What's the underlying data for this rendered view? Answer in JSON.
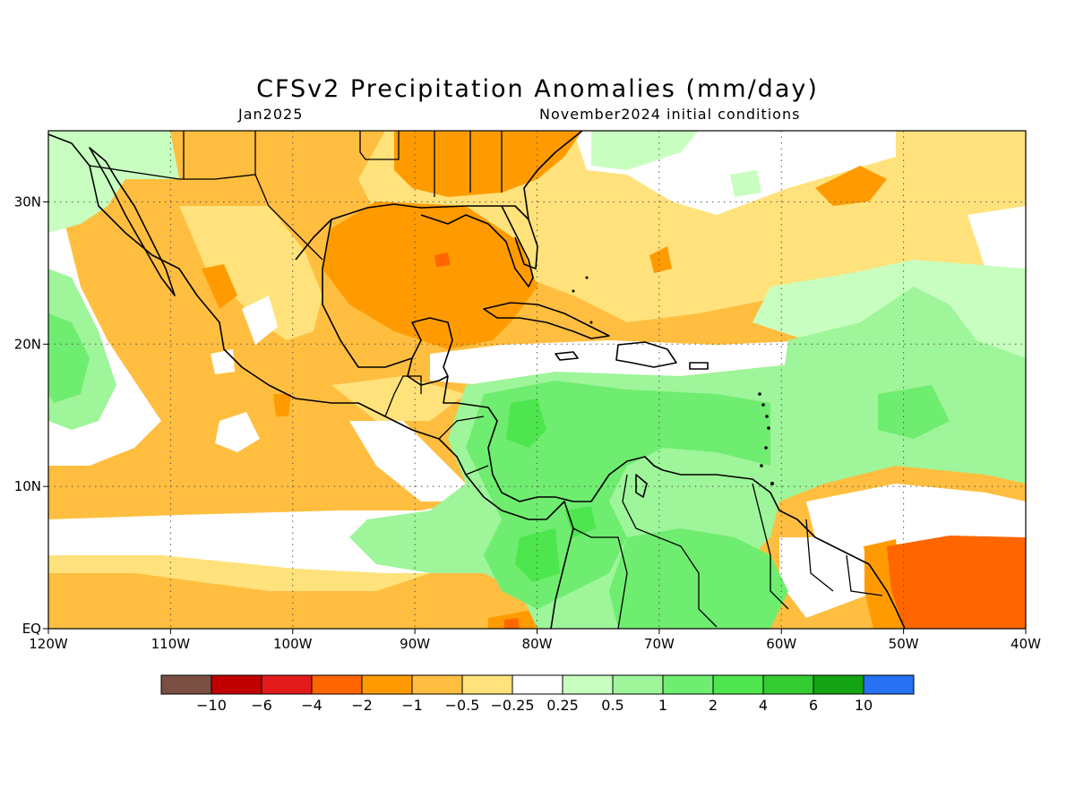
{
  "title": "CFSv2 Precipitation Anomalies (mm/day)",
  "subtitle_left": "Jan2025",
  "subtitle_right": "November2024 initial conditions",
  "map": {
    "lon_range": [
      -120,
      -40
    ],
    "lat_range": [
      0,
      35
    ],
    "x_ticks": [
      {
        "lon": -120,
        "label": "120W"
      },
      {
        "lon": -110,
        "label": "110W"
      },
      {
        "lon": -100,
        "label": "100W"
      },
      {
        "lon": -90,
        "label": "90W"
      },
      {
        "lon": -80,
        "label": "80W"
      },
      {
        "lon": -70,
        "label": "70W"
      },
      {
        "lon": -60,
        "label": "60W"
      },
      {
        "lon": -50,
        "label": "50W"
      },
      {
        "lon": -40,
        "label": "40W"
      }
    ],
    "y_ticks": [
      {
        "lat": 0,
        "label": "EQ"
      },
      {
        "lat": 10,
        "label": "10N"
      },
      {
        "lat": 20,
        "label": "20N"
      },
      {
        "lat": 30,
        "label": "30N"
      }
    ],
    "grid": "dotted"
  },
  "colors": {
    "brown": "#7a4f43",
    "dark_red": "#c00000",
    "red": "#e31a1c",
    "dark_orange": "#ff6600",
    "orange": "#ff9b00",
    "light_orange": "#ffbe3f",
    "yellow": "#ffe27b",
    "white": "#ffffff",
    "pale_green": "#c8ffc0",
    "light_green": "#9ef59a",
    "green": "#6fed70",
    "bright_green": "#4ee64e",
    "mid_green": "#33cc33",
    "dark_green": "#13a313",
    "blue": "#2672f2",
    "land_line": "#000000"
  },
  "legend": {
    "colors": [
      "#7a4f43",
      "#c00000",
      "#e31a1c",
      "#ff6600",
      "#ff9b00",
      "#ffbe3f",
      "#ffe27b",
      "#ffffff",
      "#c8ffc0",
      "#9ef59a",
      "#6fed70",
      "#4ee64e",
      "#33cc33",
      "#13a313",
      "#2672f2"
    ],
    "labels": [
      "−10",
      "−6",
      "−4",
      "−2",
      "−1",
      "−0.5",
      "−0.25",
      "0.25",
      "0.5",
      "1",
      "2",
      "4",
      "6",
      "10"
    ]
  }
}
